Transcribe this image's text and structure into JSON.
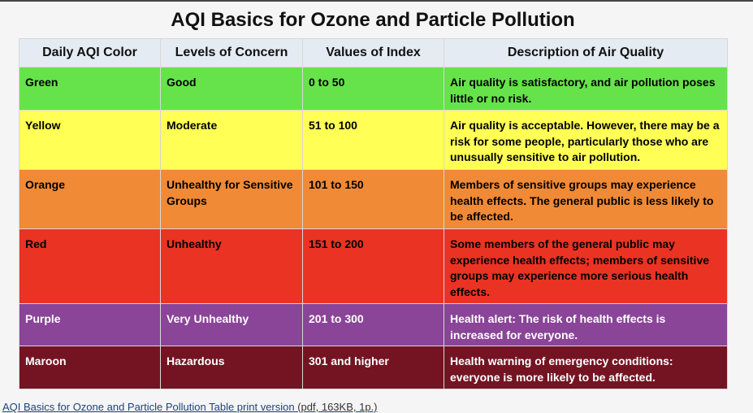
{
  "title": "AQI Basics for Ozone and Particle Pollution",
  "headers": [
    "Daily AQI Color",
    "Levels of Concern",
    "Values of Index",
    "Description of Air Quality"
  ],
  "rows": [
    {
      "color": "Green",
      "level": "Good",
      "values": "0 to 50",
      "description": "Air quality is satisfactory, and air pollution poses little or no risk.",
      "bg": "#66e34a",
      "fg": "#000000"
    },
    {
      "color": "Yellow",
      "level": "Moderate",
      "values": "51 to 100",
      "description": "Air quality is acceptable. However, there may be a risk for some people, particularly those who are unusually sensitive to air pollution.",
      "bg": "#ffff55",
      "fg": "#000000"
    },
    {
      "color": "Orange",
      "level": "Unhealthy for Sensitive Groups",
      "values": "101 to 150",
      "description": "Members of sensitive groups may experience health effects. The general public is less likely to be affected.",
      "bg": "#f08a36",
      "fg": "#000000"
    },
    {
      "color": "Red",
      "level": "Unhealthy",
      "values": "151 to 200",
      "description": "Some members of the general public may experience health effects; members of sensitive groups may experience more serious health effects.",
      "bg": "#ea3323",
      "fg": "#000000"
    },
    {
      "color": "Purple",
      "level": "Very Unhealthy",
      "values": "201 to 300",
      "description": "Health alert: The risk of health effects is increased for everyone.",
      "bg": "#8a4498",
      "fg": "#ffffff"
    },
    {
      "color": "Maroon",
      "level": "Hazardous",
      "values": "301 and higher",
      "description": "Health warning of emergency conditions: everyone is more likely to be affected.",
      "bg": "#741423",
      "fg": "#ffffff"
    }
  ],
  "footer": {
    "link": "AQI Basics for Ozone and Particle Pollution Table print version",
    "meta": " (pdf, 163KB, 1p.)"
  }
}
